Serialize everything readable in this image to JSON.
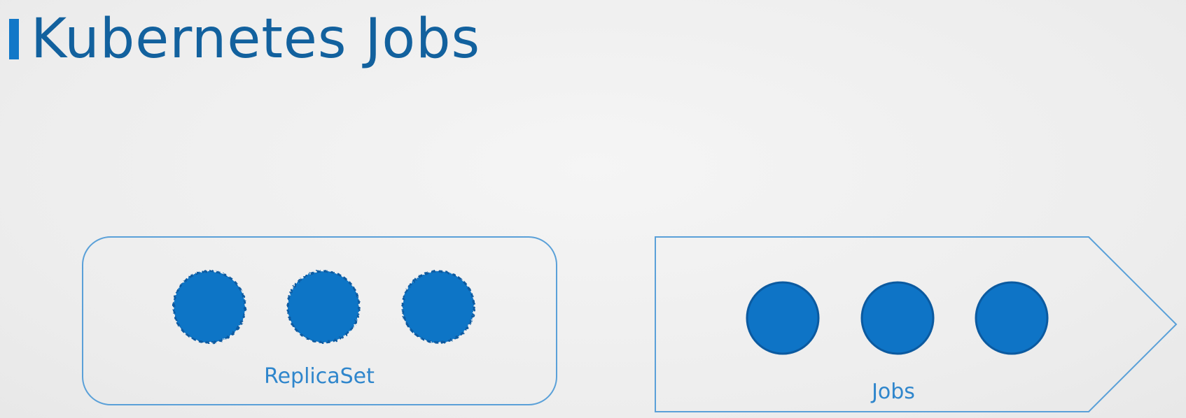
{
  "title": "Kubernetes Jobs",
  "colors": {
    "accent": "#1278c8",
    "title": "#12619e",
    "pod_fill": "#0e74c6",
    "pod_stroke": "#0b5aa0",
    "box_stroke": "#5aa0d8",
    "label": "#2f86cc"
  },
  "replicaset": {
    "label": "ReplicaSet",
    "pods": 3,
    "pod_style": "dashed"
  },
  "jobs": {
    "label": "Jobs",
    "pods": 3,
    "pod_style": "solid"
  }
}
